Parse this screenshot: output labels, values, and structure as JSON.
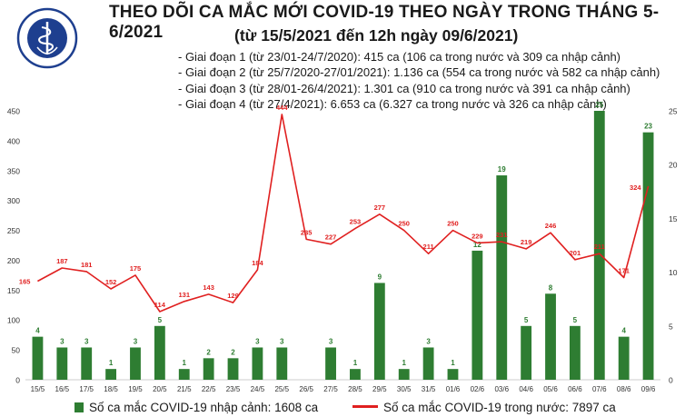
{
  "header": {
    "title": "THEO DÕI CA MẮC MỚI COVID-19 THEO NGÀY TRONG THÁNG 5-6/2021",
    "subtitle": "(từ 15/5/2021 đến 12h ngày 09/6/2021)",
    "logo_text_top": "BỘ Y TẾ",
    "logo_text_bottom": "MINISTRY OF HEALTH"
  },
  "notes": [
    "- Giai đoạn 1 (từ 23/01-24/7/2020): 415 ca (106 ca trong nước và 309 ca nhập cảnh)",
    "- Giai đoạn 2 (từ 25/7/2020-27/01/2021): 1.136 ca (554 ca trong nước và 582 ca nhập cảnh)",
    "- Giai đoạn 3 (từ 28/01-26/4/2021): 1.301 ca (910 ca trong nước và 391 ca nhập cảnh)",
    "- Giai đoạn 4 (từ 27/4/2021): 6.653 ca (6.327 ca trong nước và 326 ca nhập cảnh)"
  ],
  "legend": {
    "bar_label": "Số ca mắc COVID-19 nhập cảnh: 1608 ca",
    "line_label": "Số ca mắc COVID-19 trong nước: 7897 ca"
  },
  "colors": {
    "bar": "#2e7d32",
    "line": "#e02020",
    "axis_text": "#333333",
    "grid": "#e6e6e6"
  },
  "chart_data": {
    "type": "bar+line",
    "categories": [
      "15/5",
      "16/5",
      "17/5",
      "18/5",
      "19/5",
      "20/5",
      "21/5",
      "22/5",
      "23/5",
      "24/5",
      "25/5",
      "26/5",
      "27/5",
      "28/5",
      "29/5",
      "30/5",
      "31/5",
      "01/6",
      "02/6",
      "03/6",
      "04/6",
      "05/6",
      "06/6",
      "07/6",
      "08/6",
      "09/6"
    ],
    "series": [
      {
        "name": "Số ca mắc COVID-19 nhập cảnh: 1608 ca",
        "type": "bar",
        "axis": "right",
        "values": [
          4,
          3,
          3,
          1,
          3,
          5,
          1,
          2,
          2,
          3,
          3,
          null,
          3,
          1,
          9,
          1,
          3,
          1,
          12,
          19,
          5,
          8,
          5,
          25,
          4,
          23
        ]
      },
      {
        "name": "Số ca mắc COVID-19 trong nước: 7897 ca",
        "type": "line",
        "axis": "left",
        "values": [
          165,
          187,
          181,
          152,
          175,
          114,
          131,
          143,
          129,
          184,
          444,
          235,
          227,
          253,
          277,
          250,
          211,
          250,
          229,
          231,
          219,
          246,
          201,
          211,
          171,
          324
        ]
      }
    ],
    "y_left": {
      "min": 0,
      "max": 450,
      "ticks": [
        0,
        50,
        100,
        150,
        200,
        250,
        300,
        350,
        400,
        450
      ]
    },
    "y_right": {
      "min": 0,
      "max": 25,
      "ticks": [
        0,
        5,
        10,
        15,
        20,
        25
      ]
    },
    "grid": false,
    "legend_position": "bottom"
  }
}
